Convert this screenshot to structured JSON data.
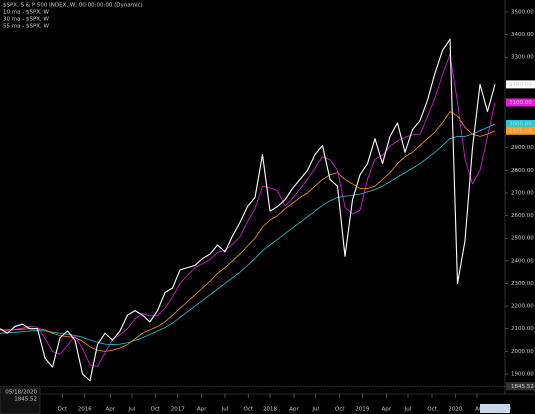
{
  "chart_data": {
    "type": "line",
    "title": "$SPX, S & P 500 INDEX, W, 00:00:00:00 (Dynamic)",
    "ylim": [
      1838,
      3553
    ],
    "yticks": [
      {
        "value": 3500,
        "label": "3500.00"
      },
      {
        "value": 3400,
        "label": "3400.00"
      },
      {
        "value": 3300,
        "label": "3300.00"
      },
      {
        "value": 2900,
        "label": "2900.00"
      },
      {
        "value": 2800,
        "label": "2800.00"
      },
      {
        "value": 2700,
        "label": "2700.00"
      },
      {
        "value": 2600,
        "label": "2600.00"
      },
      {
        "value": 2500,
        "label": "2500.00"
      },
      {
        "value": 2400,
        "label": "2400.00"
      },
      {
        "value": 2300,
        "label": "2300.00"
      },
      {
        "value": 2200,
        "label": "2200.00"
      },
      {
        "value": 2100,
        "label": "2100.00"
      },
      {
        "value": 2000,
        "label": "2000.00"
      },
      {
        "value": 1900,
        "label": "1900.00"
      }
    ],
    "xticks": [
      {
        "value": 8.3,
        "label": "Oct"
      },
      {
        "value": 11.3,
        "label": "2016"
      },
      {
        "value": 14.7,
        "label": "Apr"
      },
      {
        "value": 17.6,
        "label": "Jul"
      },
      {
        "value": 20.7,
        "label": "Oct"
      },
      {
        "value": 23.7,
        "label": "2017"
      },
      {
        "value": 26.9,
        "label": "Apr"
      },
      {
        "value": 30,
        "label": "Jul"
      },
      {
        "value": 33.1,
        "label": "Oct"
      },
      {
        "value": 36,
        "label": "2018"
      },
      {
        "value": 39.2,
        "label": "Apr"
      },
      {
        "value": 42.1,
        "label": "Jul"
      },
      {
        "value": 45.3,
        "label": "Oct"
      },
      {
        "value": 48.3,
        "label": "2019"
      },
      {
        "value": 51.5,
        "label": "Apr"
      },
      {
        "value": 54.4,
        "label": "Jul"
      },
      {
        "value": 57.6,
        "label": "Oct"
      },
      {
        "value": 60.7,
        "label": "2020"
      },
      {
        "value": 63.6,
        "label": "A"
      }
    ],
    "cursor_date": "05/18/2020",
    "crosshair": 1845.52,
    "series": [
      {
        "name": "$SPX, W",
        "color": "#ffffff",
        "last_value_label": "3180.00",
        "values": [
          2100,
          2080,
          2110,
          2120,
          2100,
          2100,
          1970,
          1930,
          2060,
          2090,
          2050,
          1900,
          1870,
          2030,
          2080,
          2050,
          2090,
          2160,
          2180,
          2160,
          2130,
          2180,
          2260,
          2280,
          2360,
          2370,
          2380,
          2410,
          2430,
          2470,
          2440,
          2510,
          2570,
          2640,
          2680,
          2870,
          2620,
          2640,
          2670,
          2720,
          2760,
          2800,
          2870,
          2910,
          2760,
          2730,
          2420,
          2670,
          2780,
          2830,
          2940,
          2830,
          2950,
          3010,
          2880,
          2980,
          3020,
          3110,
          3230,
          3330,
          3380,
          2300,
          2490,
          2900,
          3180,
          3060,
          3180
        ]
      },
      {
        "name": "10 ma - $SPX, W",
        "color": "#e41ce4",
        "last_value_label": "3100.00",
        "values": [
          2100,
          2090,
          2097,
          2103,
          2110,
          2107,
          2057,
          2000,
          1987,
          2027,
          2067,
          2013,
          1940,
          1933,
          1993,
          2053,
          2073,
          2100,
          2143,
          2167,
          2157,
          2157,
          2190,
          2240,
          2300,
          2337,
          2370,
          2387,
          2407,
          2437,
          2447,
          2473,
          2507,
          2573,
          2630,
          2730,
          2723,
          2710,
          2643,
          2677,
          2717,
          2760,
          2810,
          2860,
          2847,
          2800,
          2637,
          2607,
          2623,
          2760,
          2850,
          2867,
          2907,
          2930,
          2947,
          2957,
          2960,
          3037,
          3120,
          3223,
          3313,
          3100,
          2850,
          2740,
          2800,
          2950,
          3100
        ]
      },
      {
        "name": "30 ma - $SPX, W",
        "color": "#ff9a1a",
        "last_value_label": "2975.00",
        "values": [
          2095,
          2095,
          2096,
          2098,
          2100,
          2101,
          2095,
          2080,
          2070,
          2065,
          2060,
          2045,
          2020,
          2005,
          2000,
          2005,
          2015,
          2030,
          2055,
          2080,
          2095,
          2110,
          2130,
          2160,
          2190,
          2220,
          2250,
          2280,
          2310,
          2345,
          2370,
          2400,
          2430,
          2465,
          2500,
          2550,
          2580,
          2600,
          2630,
          2655,
          2680,
          2700,
          2730,
          2760,
          2780,
          2790,
          2760,
          2740,
          2720,
          2720,
          2730,
          2760,
          2790,
          2830,
          2860,
          2880,
          2910,
          2940,
          2970,
          3010,
          3060,
          3040,
          2990,
          2960,
          2950,
          2960,
          2975
        ]
      },
      {
        "name": "55 ma - $SPX, W",
        "color": "#26c6d8",
        "last_value_label": "3005.00",
        "values": [
          2080,
          2082,
          2084,
          2087,
          2090,
          2092,
          2090,
          2085,
          2080,
          2075,
          2070,
          2062,
          2050,
          2040,
          2032,
          2030,
          2032,
          2038,
          2048,
          2060,
          2075,
          2090,
          2105,
          2125,
          2150,
          2175,
          2200,
          2225,
          2250,
          2275,
          2300,
          2325,
          2350,
          2380,
          2410,
          2445,
          2470,
          2495,
          2520,
          2545,
          2570,
          2595,
          2620,
          2645,
          2665,
          2680,
          2685,
          2690,
          2695,
          2705,
          2715,
          2730,
          2750,
          2770,
          2790,
          2810,
          2830,
          2855,
          2880,
          2910,
          2940,
          2950,
          2950,
          2960,
          2975,
          2990,
          3005
        ]
      }
    ]
  }
}
